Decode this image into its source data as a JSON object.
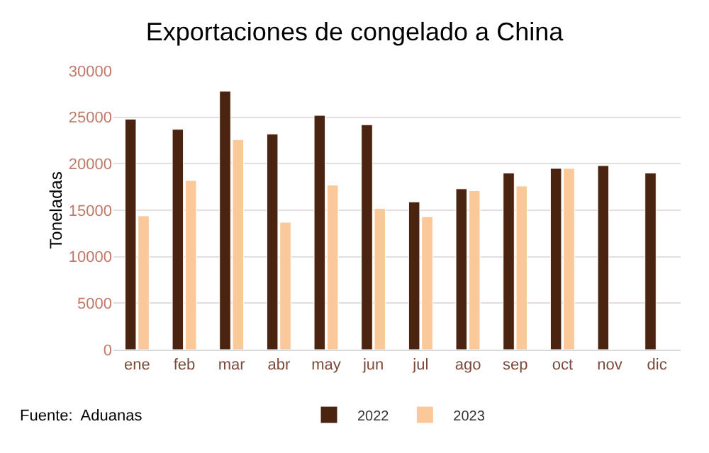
{
  "chart_data": {
    "type": "bar",
    "title": "Exportaciones de congelado a China",
    "ylabel": "Toneladas",
    "categories": [
      "ene",
      "feb",
      "mar",
      "abr",
      "may",
      "jun",
      "jul",
      "ago",
      "sep",
      "oct",
      "nov",
      "dic"
    ],
    "series": [
      {
        "name": "2022",
        "color": "#4a2410",
        "values": [
          24800,
          23700,
          27800,
          23200,
          25200,
          24200,
          15900,
          17300,
          19000,
          19500,
          19800,
          19000
        ]
      },
      {
        "name": "2023",
        "color": "#fbc89a",
        "values": [
          14400,
          18200,
          22600,
          13700,
          17700,
          15200,
          14300,
          17100,
          17600,
          19500,
          null,
          null
        ]
      }
    ],
    "ylim": [
      0,
      30000
    ],
    "yticks": [
      0,
      5000,
      10000,
      15000,
      20000,
      25000,
      30000
    ],
    "grid": "y",
    "legend": "bottom",
    "annotations": [
      "Fuente:  Aduanas"
    ]
  }
}
